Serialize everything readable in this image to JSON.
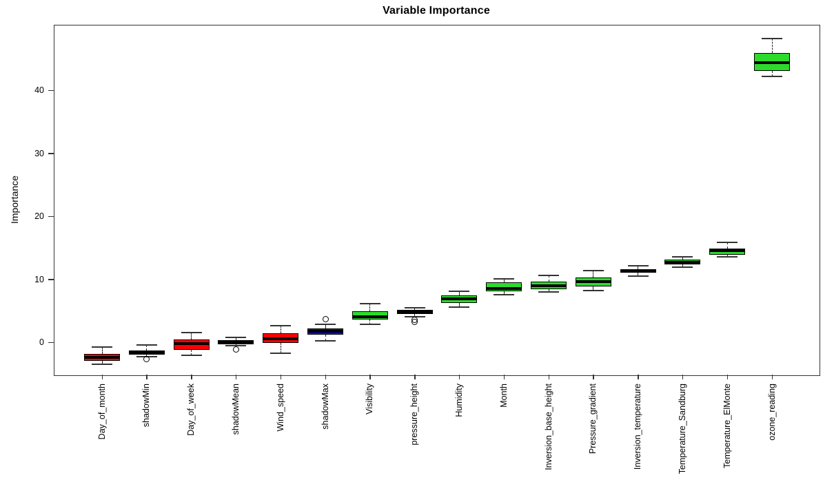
{
  "title": "Variable Importance",
  "chart_data": {
    "type": "boxplot",
    "title": "Variable Importance",
    "xlabel": "",
    "ylabel": "Importance",
    "yticks": [
      0,
      10,
      20,
      30,
      40
    ],
    "ylim": [
      -5.1,
      50.4
    ],
    "grid": false,
    "legend": null,
    "palette": {
      "rejected": "#FF0000",
      "shadow": "#0000FF",
      "confirmed": "#2CDB2C"
    },
    "boxes": [
      {
        "name": "Day_of_month",
        "status": "rejected",
        "lo": -3.5,
        "q1": -2.9,
        "med": -2.4,
        "q3": -1.9,
        "hi": -0.8,
        "outliers": []
      },
      {
        "name": "shadowMin",
        "status": "shadow",
        "lo": -2.3,
        "q1": -2.0,
        "med": -1.6,
        "q3": -1.3,
        "hi": -0.4,
        "outliers": [
          -2.7
        ]
      },
      {
        "name": "Day_of_week",
        "status": "rejected",
        "lo": -2.1,
        "q1": -1.2,
        "med": -0.2,
        "q3": 0.4,
        "hi": 1.5,
        "outliers": []
      },
      {
        "name": "shadowMean",
        "status": "shadow",
        "lo": -0.6,
        "q1": -0.3,
        "med": 0.0,
        "q3": 0.3,
        "hi": 0.8,
        "outliers": [
          -1.1
        ]
      },
      {
        "name": "Wind_speed",
        "status": "rejected",
        "lo": -1.8,
        "q1": -0.1,
        "med": 0.5,
        "q3": 1.4,
        "hi": 2.6,
        "outliers": []
      },
      {
        "name": "shadowMax",
        "status": "shadow",
        "lo": 0.2,
        "q1": 1.2,
        "med": 1.8,
        "q3": 2.2,
        "hi": 2.8,
        "outliers": [
          3.7
        ]
      },
      {
        "name": "Visibility",
        "status": "confirmed",
        "lo": 2.8,
        "q1": 3.6,
        "med": 4.0,
        "q3": 4.9,
        "hi": 6.1,
        "outliers": []
      },
      {
        "name": "pressure_height",
        "status": "confirmed",
        "lo": 4.0,
        "q1": 4.5,
        "med": 4.8,
        "q3": 5.1,
        "hi": 5.5,
        "outliers": [
          3.6,
          3.2
        ]
      },
      {
        "name": "Humidity",
        "status": "confirmed",
        "lo": 5.6,
        "q1": 6.2,
        "med": 6.9,
        "q3": 7.4,
        "hi": 8.1,
        "outliers": []
      },
      {
        "name": "Month",
        "status": "confirmed",
        "lo": 7.5,
        "q1": 8.1,
        "med": 8.5,
        "q3": 9.5,
        "hi": 10.1,
        "outliers": []
      },
      {
        "name": "Inversion_base_height",
        "status": "confirmed",
        "lo": 8.0,
        "q1": 8.4,
        "med": 9.0,
        "q3": 9.6,
        "hi": 10.6,
        "outliers": []
      },
      {
        "name": "Pressure_gradient",
        "status": "confirmed",
        "lo": 8.2,
        "q1": 8.9,
        "med": 9.6,
        "q3": 10.3,
        "hi": 11.4,
        "outliers": []
      },
      {
        "name": "Inversion_temperature",
        "status": "confirmed",
        "lo": 10.5,
        "q1": 11.0,
        "med": 11.3,
        "q3": 11.6,
        "hi": 12.1,
        "outliers": []
      },
      {
        "name": "Temperature_Sandburg",
        "status": "confirmed",
        "lo": 11.9,
        "q1": 12.3,
        "med": 12.7,
        "q3": 13.1,
        "hi": 13.6,
        "outliers": []
      },
      {
        "name": "Temperature_ElMonte",
        "status": "confirmed",
        "lo": 13.6,
        "q1": 13.9,
        "med": 14.5,
        "q3": 14.9,
        "hi": 15.8,
        "outliers": []
      },
      {
        "name": "ozone_reading",
        "status": "confirmed",
        "lo": 42.2,
        "q1": 43.1,
        "med": 44.4,
        "q3": 45.9,
        "hi": 48.2,
        "outliers": []
      }
    ]
  }
}
